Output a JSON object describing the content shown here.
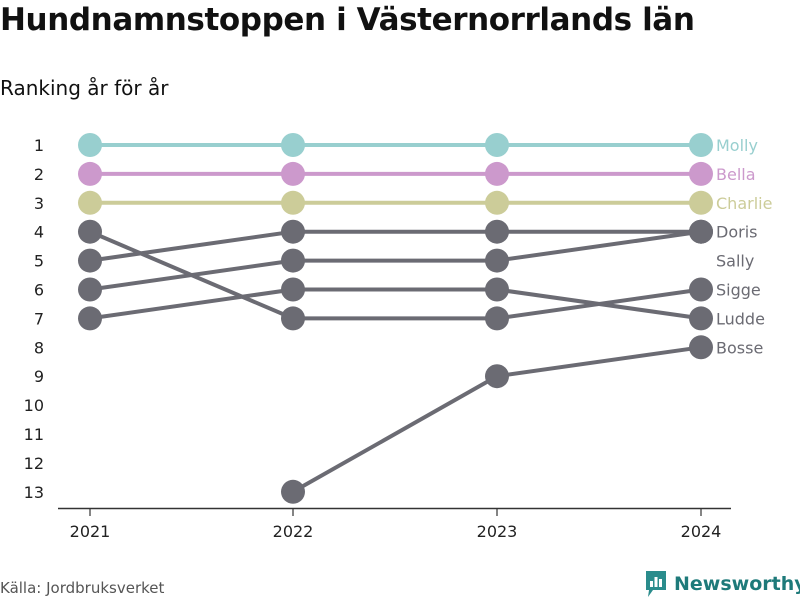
{
  "title": "Hundnamnstoppen i Västernorrlands län",
  "subtitle": "Ranking år för år",
  "source": "Källa: Jordbruksverket",
  "brand": {
    "name": "Newsworthy",
    "icon": "newsworthy-logo-icon",
    "color": "#1e7a7a"
  },
  "colors": {
    "gray": "#6b6b73",
    "axis": "#333333"
  },
  "chart_data": {
    "type": "line",
    "x": [
      "2021",
      "2022",
      "2023",
      "2024"
    ],
    "yticks": [
      1,
      2,
      3,
      4,
      5,
      6,
      7,
      8,
      9,
      10,
      11,
      12,
      13
    ],
    "ylim": [
      1,
      13
    ],
    "y_reversed": true,
    "grid": false,
    "series": [
      {
        "name": "Molly",
        "color": "#98cfcf",
        "values": [
          1,
          1,
          1,
          1
        ]
      },
      {
        "name": "Bella",
        "color": "#cc99cc",
        "values": [
          2,
          2,
          2,
          2
        ]
      },
      {
        "name": "Charlie",
        "color": "#cccc99",
        "values": [
          3,
          3,
          3,
          3
        ]
      },
      {
        "name": "Doris",
        "color": "#6b6b73",
        "values": [
          5,
          4,
          4,
          4
        ]
      },
      {
        "name": "Sally",
        "color": "#6b6b73",
        "values": [
          6,
          5,
          5,
          4
        ]
      },
      {
        "name": "Sigge",
        "color": "#6b6b73",
        "values": [
          4,
          7,
          7,
          6
        ]
      },
      {
        "name": "Ludde",
        "color": "#6b6b73",
        "values": [
          7,
          6,
          6,
          7
        ]
      },
      {
        "name": "Bosse",
        "color": "#6b6b73",
        "values": [
          null,
          13,
          9,
          8
        ]
      }
    ],
    "end_labels": [
      {
        "text": "Molly",
        "rank": 1,
        "color": "#98cfcf"
      },
      {
        "text": "Bella",
        "rank": 2,
        "color": "#cc99cc"
      },
      {
        "text": "Charlie",
        "rank": 3,
        "color": "#cccc99"
      },
      {
        "text": "Doris",
        "rank": 4,
        "color": "#6b6b73"
      },
      {
        "text": "Sally",
        "rank": 5,
        "color": "#6b6b73"
      },
      {
        "text": "Sigge",
        "rank": 6,
        "color": "#6b6b73"
      },
      {
        "text": "Ludde",
        "rank": 7,
        "color": "#6b6b73"
      },
      {
        "text": "Bosse",
        "rank": 8,
        "color": "#6b6b73"
      }
    ]
  }
}
